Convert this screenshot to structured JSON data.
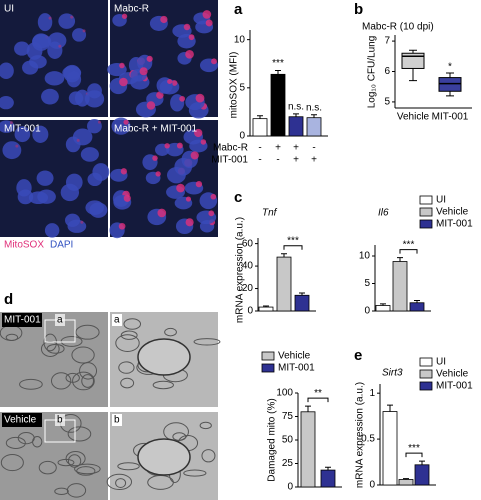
{
  "chart_data": [
    {
      "type": "bar",
      "ylabel": "mitoSOX (MFI)",
      "colors": [
        "#ffffff",
        "#000000",
        "#2e3192",
        "#a9b4e0"
      ],
      "panels": [
        {
          "values": [
            1.8,
            6.4,
            2.0,
            1.9
          ],
          "errors": [
            0.3,
            0.4,
            0.3,
            0.3
          ],
          "ylim": [
            0,
            11
          ],
          "yticks": [
            0,
            5,
            10
          ],
          "annotations": [
            "***",
            "n.s.",
            "n.s."
          ]
        }
      ],
      "conditions": [
        {
          "label": "Mabc-R",
          "signs": [
            "-",
            "+",
            "+",
            "-"
          ]
        },
        {
          "label": "MIT-001",
          "signs": [
            "-",
            "-",
            "+",
            "+"
          ]
        }
      ]
    },
    {
      "type": "box",
      "title": "Mabc-R (10 dpi)",
      "ylabel": "Log₁₀ CFU/Lung",
      "categories": [
        "Vehicle",
        "MIT-001"
      ],
      "colors": [
        "#d0d0d0",
        "#3a3f9e"
      ],
      "boxes": [
        {
          "min": 5.7,
          "q1": 6.1,
          "median": 6.5,
          "q3": 6.6,
          "max": 6.7
        },
        {
          "min": 5.2,
          "q1": 5.35,
          "median": 5.6,
          "q3": 5.8,
          "max": 5.95
        }
      ],
      "ylim": [
        4.8,
        7.2
      ],
      "yticks": [
        5,
        6,
        7
      ],
      "annotations": [
        "*"
      ]
    },
    {
      "type": "bar",
      "ylabel": "mRNA expression (a.u.)",
      "series": [
        {
          "name": "UI",
          "color": "#ffffff"
        },
        {
          "name": "Vehicle",
          "color": "#c8c8c8"
        },
        {
          "name": "MIT-001",
          "color": "#2e3192"
        }
      ],
      "panels": [
        {
          "title": "Tnf",
          "values": [
            3.5,
            48,
            14
          ],
          "errors": [
            1,
            3,
            2
          ],
          "ylim": [
            0,
            65
          ],
          "yticks": [
            0,
            20,
            40,
            60
          ],
          "annotations": [
            "***"
          ]
        },
        {
          "title": "Il6",
          "values": [
            1,
            9,
            1.5
          ],
          "errors": [
            0.3,
            0.7,
            0.4
          ],
          "ylim": [
            0,
            12
          ],
          "yticks": [
            0,
            5,
            10
          ],
          "annotations": [
            "***"
          ]
        }
      ]
    },
    {
      "type": "bar",
      "ylabel": "Damaged mito (%)",
      "series": [
        {
          "name": "Vehicle",
          "color": "#c8c8c8"
        },
        {
          "name": "MIT-001",
          "color": "#2e3192"
        }
      ],
      "panels": [
        {
          "values": [
            80,
            18
          ],
          "errors": [
            6,
            3
          ],
          "ylim": [
            0,
            100
          ],
          "yticks": [
            0,
            25,
            50,
            75,
            100
          ],
          "annotations": [
            "**"
          ]
        }
      ]
    },
    {
      "type": "bar",
      "ylabel": "mRNA expression (a.u.)",
      "series": [
        {
          "name": "UI",
          "color": "#ffffff"
        },
        {
          "name": "Vehicle",
          "color": "#c8c8c8"
        },
        {
          "name": "MIT-001",
          "color": "#2e3192"
        }
      ],
      "panels": [
        {
          "title": "Sirt3",
          "values": [
            0.8,
            0.06,
            0.22
          ],
          "errors": [
            0.07,
            0.01,
            0.04
          ],
          "ylim": [
            0,
            1.1
          ],
          "yticks": [
            0,
            0.5,
            1
          ],
          "annotations": [
            "***"
          ]
        }
      ]
    }
  ],
  "figure": {
    "panel_letters": [
      "a",
      "b",
      "c",
      "d",
      "e"
    ],
    "micrographs_a": [
      "UI",
      "Mabc-R",
      "MIT-001",
      "Mabc-R + MIT-001"
    ],
    "stain_labels": [
      "MitoSOX",
      "DAPI"
    ],
    "micrographs_d": [
      "MIT-001",
      "a",
      "a",
      "Vehicle",
      "b",
      "b"
    ]
  }
}
